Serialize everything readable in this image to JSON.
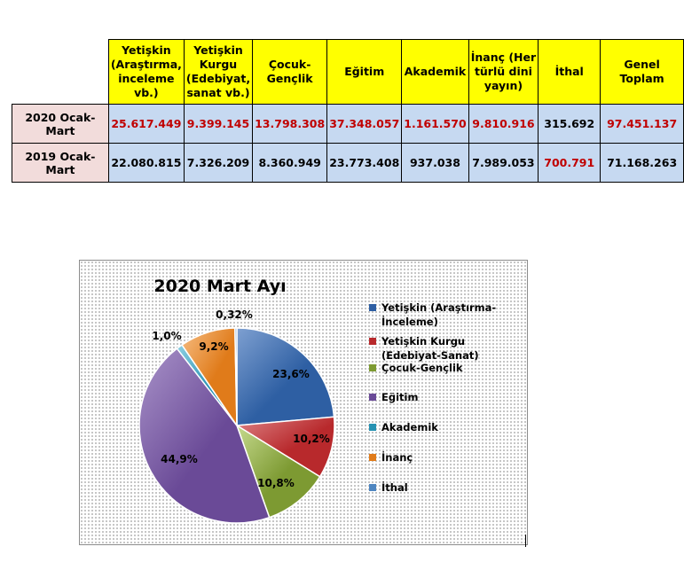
{
  "table": {
    "headers": [
      "Yetişkin (Araştırma, inceleme vb.)",
      "Yetişkin Kurgu (Edebiyat, sanat vb.)",
      "Çocuk-Gençlik",
      "Eğitim",
      "Akademik",
      "İnanç (Her türlü dini yayın)",
      "İthal",
      "Genel Toplam"
    ],
    "rows": [
      {
        "label": "2020 Ocak-Mart",
        "values": [
          "25.617.449",
          "9.399.145",
          "13.798.308",
          "37.348.057",
          "1.161.570",
          "9.810.916",
          "315.692",
          "97.451.137"
        ],
        "red": [
          true,
          true,
          true,
          true,
          true,
          true,
          false,
          true
        ]
      },
      {
        "label": "2019 Ocak-Mart",
        "values": [
          "22.080.815",
          "7.326.209",
          "8.360.949",
          "23.773.408",
          "937.038",
          "7.989.053",
          "700.791",
          "71.168.263"
        ],
        "red": [
          false,
          false,
          false,
          false,
          false,
          false,
          true,
          false
        ]
      }
    ]
  },
  "colors": {
    "header_bg": "#ffff00",
    "cell_bg": "#c6d9f1",
    "rowlabel_bg": "#f2dcdb",
    "highlight_text": "#c00000"
  },
  "chart_data": {
    "type": "pie",
    "title": "2020 Mart Ayı",
    "slices": [
      {
        "name": "Yetişkin (Araştırma-İnceleme)",
        "value": 23.6,
        "label": "23,6%",
        "color": "#2e5fa3",
        "shade": "#7ea0d1"
      },
      {
        "name": "Yetişkin Kurgu (Edebiyat-Sanat)",
        "value": 10.2,
        "label": "10,2%",
        "color": "#b8292c",
        "shade": "#dd8284"
      },
      {
        "name": "Çocuk-Gençlik",
        "value": 10.8,
        "label": "10,8%",
        "color": "#7d9a32",
        "shade": "#c5d98d"
      },
      {
        "name": "Eğitim",
        "value": 44.9,
        "label": "44,9%",
        "color": "#6a4a97",
        "shade": "#a993c9"
      },
      {
        "name": "Akademik",
        "value": 1.0,
        "label": "1,0%",
        "color": "#2792b2",
        "shade": "#8fd0e3"
      },
      {
        "name": "İnanç",
        "value": 9.2,
        "label": "9,2%",
        "color": "#e07b1a",
        "shade": "#f6bd82"
      },
      {
        "name": "İthal",
        "value": 0.32,
        "label": "0,32%",
        "color": "#4f86c0",
        "shade": "#a6c4e4"
      }
    ],
    "legend": {
      "position": "right",
      "items": [
        "Yetişkin (Araştırma-İnceleme)",
        "Yetişkin Kurgu (Edebiyat-Sanat)",
        "Çocuk-Gençlik",
        "Eğitim",
        "Akademik",
        "İnanç",
        "İthal"
      ]
    }
  }
}
